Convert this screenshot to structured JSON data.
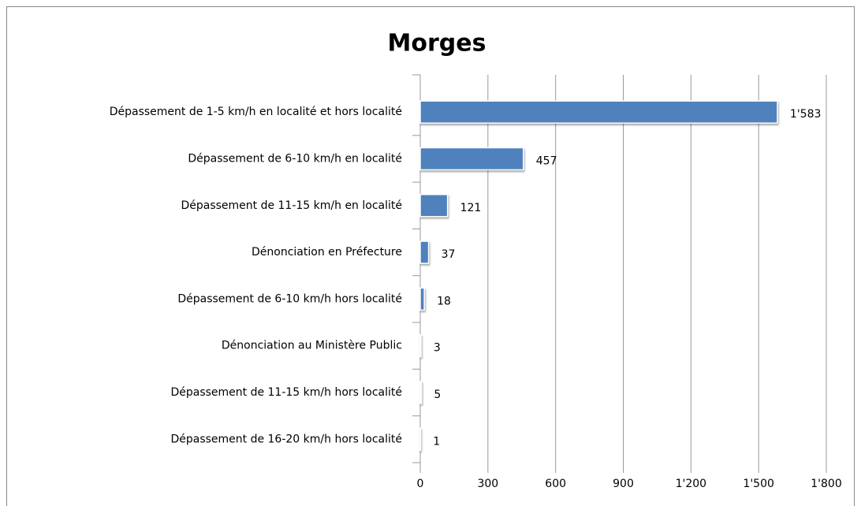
{
  "chart_data": {
    "type": "bar",
    "orientation": "horizontal",
    "title": "Morges",
    "categories": [
      "Dépassement de 1-5 km/h en localité et hors localité",
      "Dépassement de 6-10 km/h en localité",
      "Dépassement de 11-15 km/h en localité",
      "Dénonciation en Préfecture",
      "Dépassement de 6-10 km/h hors localité",
      "Dénonciation au Ministère Public",
      "Dépassement de 11-15 km/h hors localité",
      "Dépassement de 16-20 km/h hors localité"
    ],
    "values": [
      1583,
      457,
      121,
      37,
      18,
      3,
      5,
      1
    ],
    "value_labels": [
      "1'583",
      "457",
      "121",
      "37",
      "18",
      "3",
      "5",
      "1"
    ],
    "color": "#4f81bd",
    "xlim": [
      0,
      1800
    ],
    "xticks": [
      0,
      300,
      600,
      900,
      {
        "value": 1200,
        "label": "1'200"
      },
      {
        "value": 1500,
        "label": "1'500"
      },
      {
        "value": 1800,
        "label": "1'800"
      }
    ],
    "grid": true
  }
}
